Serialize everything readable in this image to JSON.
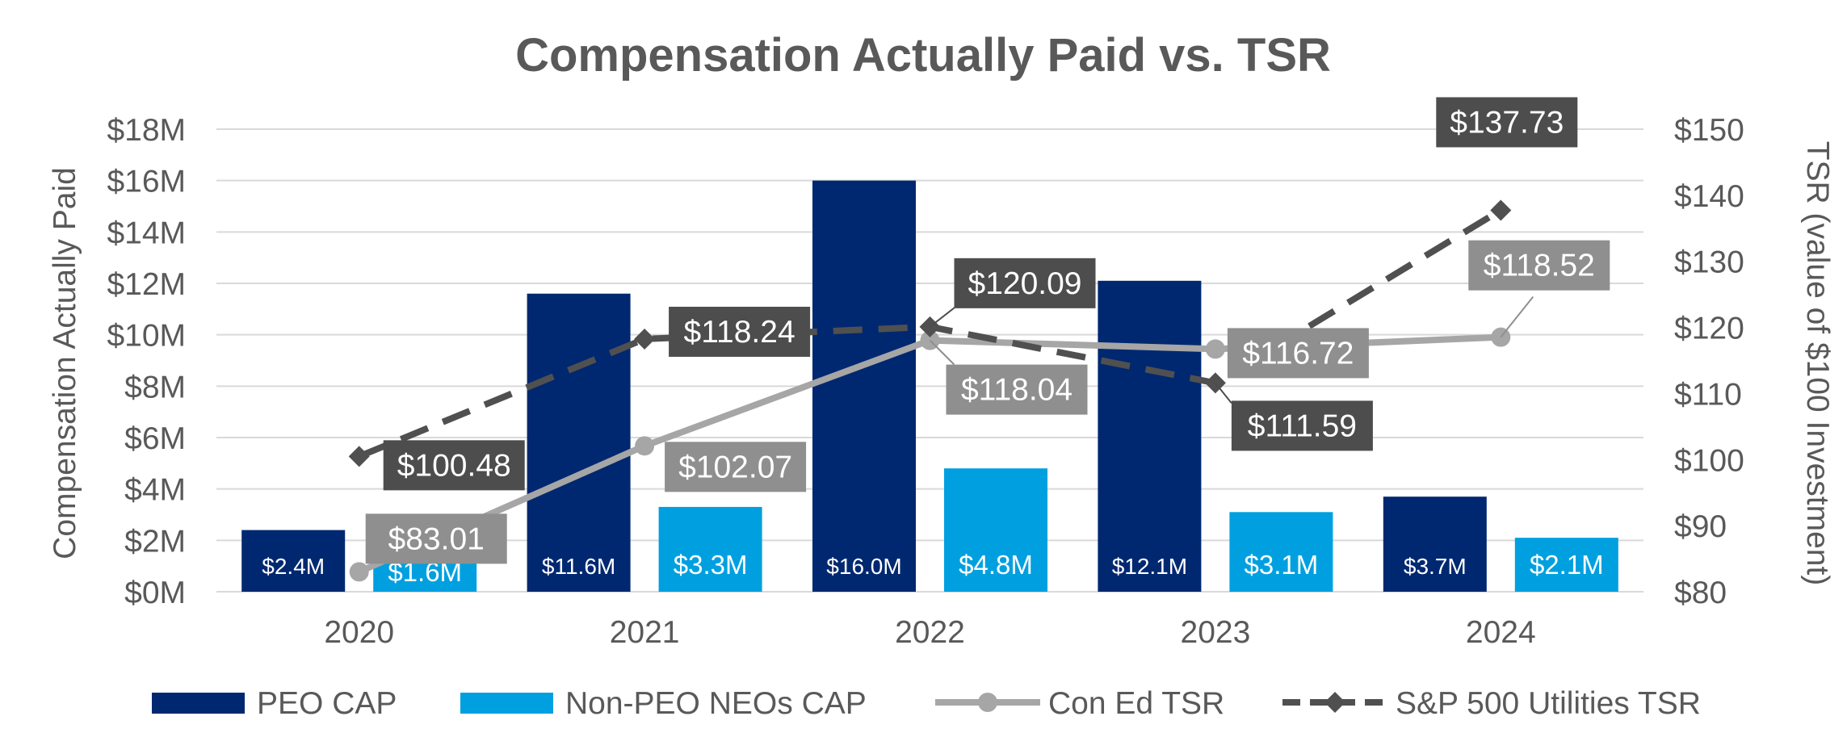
{
  "chart_data": {
    "type": "bar",
    "title": "Compensation  Actually Paid vs. TSR",
    "categories": [
      "2020",
      "2021",
      "2022",
      "2023",
      "2024"
    ],
    "ylabel": "Compensation Actually Paid",
    "y2label": "TSR (value of $100 Investment)",
    "ylim": [
      0,
      18
    ],
    "y2lim": [
      80,
      150
    ],
    "y_ticks": [
      0,
      2,
      4,
      6,
      8,
      10,
      12,
      14,
      16,
      18
    ],
    "y_tick_labels": [
      "$0M",
      "$2M",
      "$4M",
      "$6M",
      "$8M",
      "$10M",
      "$12M",
      "$14M",
      "$16M",
      "$18M"
    ],
    "y2_ticks": [
      80,
      90,
      100,
      110,
      120,
      130,
      140,
      150
    ],
    "y2_tick_labels": [
      "$80",
      "$90",
      "$100",
      "$110",
      "$120",
      "$130",
      "$140",
      "$150"
    ],
    "grid": true,
    "legend_position": "bottom",
    "series": [
      {
        "name": "PEO CAP",
        "type": "bar",
        "axis": "left",
        "color": "#002870",
        "values": [
          2.4,
          11.6,
          16.0,
          12.1,
          3.7
        ],
        "labels": [
          "$2.4M",
          "$11.6M",
          "$16.0M",
          "$12.1M",
          "$3.7M"
        ]
      },
      {
        "name": "Non-PEO NEOs CAP",
        "type": "bar",
        "axis": "left",
        "color": "#00A0E0",
        "values": [
          1.6,
          3.3,
          4.8,
          3.1,
          2.1
        ],
        "labels": [
          "$1.6M",
          "$3.3M",
          "$4.8M",
          "$3.1M",
          "$2.1M"
        ]
      },
      {
        "name": "Con Ed TSR",
        "type": "line",
        "axis": "right",
        "color": "#A6A6A6",
        "label_bg": "#8F8F8F",
        "values": [
          83.01,
          102.07,
          118.04,
          116.72,
          118.52
        ],
        "labels": [
          "$83.01",
          "$102.07",
          "$118.04",
          "$116.72",
          "$118.52"
        ]
      },
      {
        "name": "S&P 500 Utilities TSR",
        "type": "line",
        "axis": "right",
        "color": "#505050",
        "label_bg": "#4D4D4D",
        "values": [
          100.48,
          118.24,
          120.09,
          111.59,
          137.73
        ],
        "labels": [
          "$100.48",
          "$118.24",
          "$120.09",
          "$111.59",
          "$137.73"
        ]
      }
    ]
  }
}
